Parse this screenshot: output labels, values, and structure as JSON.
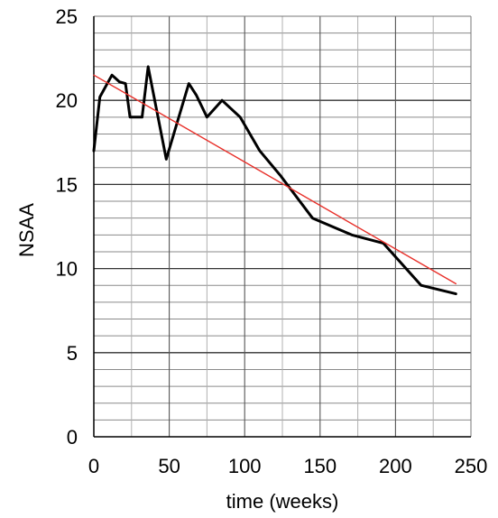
{
  "chart_data": {
    "type": "line",
    "title": "",
    "xlabel": "time (weeks)",
    "ylabel": "NSAA",
    "xlim": [
      0,
      250
    ],
    "ylim": [
      0,
      25
    ],
    "x_ticks": [
      0,
      50,
      100,
      150,
      200,
      250
    ],
    "y_ticks": [
      0,
      5,
      10,
      15,
      20,
      25
    ],
    "grid": true,
    "legend": "none",
    "series": [
      {
        "color": "#000000",
        "points": [
          [
            0,
            17
          ],
          [
            4,
            20.2
          ],
          [
            12,
            21.5
          ],
          [
            17,
            21.1
          ],
          [
            21,
            21
          ],
          [
            24,
            19
          ],
          [
            32,
            19
          ],
          [
            36,
            22
          ],
          [
            48,
            16.5
          ],
          [
            56,
            18.9
          ],
          [
            63,
            21
          ],
          [
            68,
            20.3
          ],
          [
            75,
            19
          ],
          [
            85,
            20
          ],
          [
            97,
            19
          ],
          [
            110,
            17
          ],
          [
            124,
            15.5
          ],
          [
            145,
            13
          ],
          [
            171,
            12
          ],
          [
            192,
            11.5
          ],
          [
            202,
            10.5
          ],
          [
            217,
            9
          ],
          [
            240,
            8.5
          ]
        ]
      },
      {
        "color": "#e8302a",
        "points": [
          [
            0,
            21.5
          ],
          [
            240,
            9.1
          ]
        ]
      }
    ]
  }
}
